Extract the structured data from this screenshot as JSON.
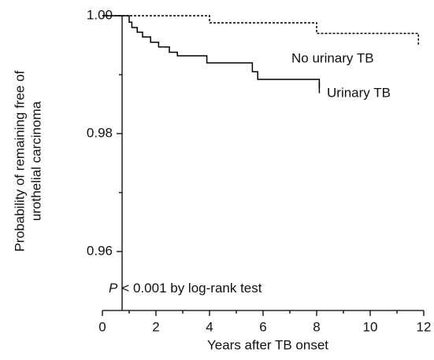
{
  "chart_data": {
    "type": "step",
    "x_label": "Years after TB onset",
    "y_label": [
      "Probability of remaining free of",
      "urothelial carcinoma"
    ],
    "annotation": {
      "italic": "P",
      "text": "< 0.001 by log-rank test"
    },
    "xlim": [
      0,
      12
    ],
    "xticks": [
      0,
      2,
      4,
      6,
      8,
      10,
      12
    ],
    "xminorticks": [
      1,
      3,
      5,
      7,
      9,
      11
    ],
    "ylim": [
      0.95,
      1.0
    ],
    "yticks": [
      {
        "value": 1.0,
        "label": "1.00"
      },
      {
        "value": 0.98,
        "label": "0.98"
      },
      {
        "value": 0.96,
        "label": "0.96"
      }
    ],
    "yminorticks": [
      0.99,
      0.97
    ],
    "series": [
      {
        "name": "No urinary TB",
        "color": "#000000",
        "style": "dashed",
        "x": [
          0,
          1.0,
          4.0,
          8.0,
          11.8
        ],
        "values": [
          1.0,
          1.0,
          0.9988,
          0.997,
          0.995
        ]
      },
      {
        "name": "Urinary TB",
        "color": "#000000",
        "style": "solid",
        "censored_end": true,
        "x": [
          0,
          1.0,
          1.1,
          1.3,
          1.5,
          1.8,
          2.1,
          2.5,
          2.8,
          3.9,
          5.6,
          5.8,
          8.1
        ],
        "values": [
          1.0,
          0.9989,
          0.998,
          0.9972,
          0.9964,
          0.9955,
          0.9947,
          0.9938,
          0.9932,
          0.992,
          0.9905,
          0.9892,
          0.9878
        ]
      }
    ]
  }
}
